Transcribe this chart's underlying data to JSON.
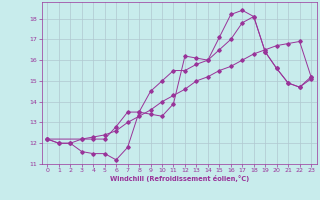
{
  "xlabel": "Windchill (Refroidissement éolien,°C)",
  "bg_color": "#c8ecec",
  "grid_color": "#b0c8d0",
  "line_color": "#993399",
  "xlim": [
    -0.5,
    23.5
  ],
  "ylim": [
    11,
    18.8
  ],
  "yticks": [
    11,
    12,
    13,
    14,
    15,
    16,
    17,
    18
  ],
  "xticks": [
    0,
    1,
    2,
    3,
    4,
    5,
    6,
    7,
    8,
    9,
    10,
    11,
    12,
    13,
    14,
    15,
    16,
    17,
    18,
    19,
    20,
    21,
    22,
    23
  ],
  "series1_x": [
    0,
    1,
    2,
    3,
    4,
    5,
    6,
    7,
    8,
    9,
    10,
    11,
    12,
    13,
    14,
    15,
    16,
    17,
    18,
    19,
    20,
    21,
    22,
    23
  ],
  "series1_y": [
    12.2,
    12.0,
    12.0,
    11.6,
    11.5,
    11.5,
    11.2,
    11.8,
    13.5,
    13.4,
    13.3,
    13.9,
    16.2,
    16.1,
    16.0,
    17.1,
    18.2,
    18.4,
    18.1,
    16.4,
    15.6,
    14.9,
    14.7,
    15.1
  ],
  "series2_x": [
    0,
    3,
    4,
    5,
    6,
    7,
    8,
    9,
    10,
    11,
    12,
    13,
    14,
    15,
    16,
    17,
    18,
    19,
    20,
    21,
    22,
    23
  ],
  "series2_y": [
    12.2,
    12.2,
    12.2,
    12.2,
    12.8,
    13.5,
    13.5,
    14.5,
    15.0,
    15.5,
    15.5,
    15.8,
    16.0,
    16.5,
    17.0,
    17.8,
    18.1,
    16.4,
    15.6,
    14.9,
    14.7,
    15.2
  ],
  "series3_x": [
    0,
    1,
    2,
    3,
    4,
    5,
    6,
    7,
    8,
    9,
    10,
    11,
    12,
    13,
    14,
    15,
    16,
    17,
    18,
    19,
    20,
    21,
    22,
    23
  ],
  "series3_y": [
    12.2,
    12.0,
    12.0,
    12.2,
    12.3,
    12.4,
    12.6,
    13.0,
    13.3,
    13.6,
    14.0,
    14.3,
    14.6,
    15.0,
    15.2,
    15.5,
    15.7,
    16.0,
    16.3,
    16.5,
    16.7,
    16.8,
    16.9,
    15.2
  ]
}
